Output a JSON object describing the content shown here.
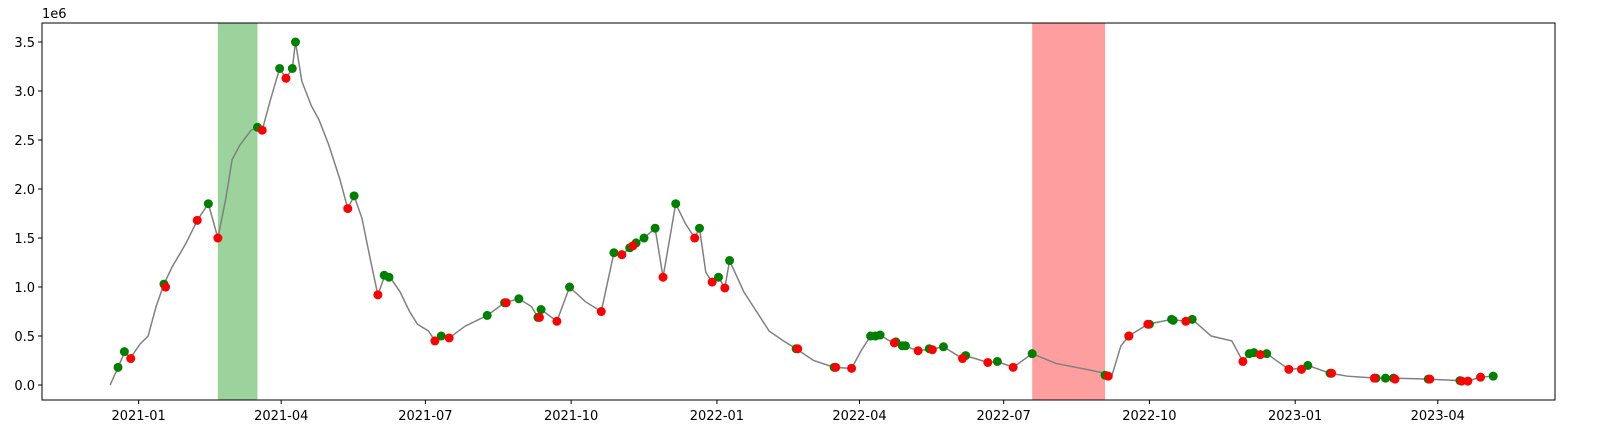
{
  "chart_data": {
    "type": "line",
    "yoffset": "1e6",
    "xlim": [
      "2020-11-01",
      "2023-06-14"
    ],
    "ylim": [
      -0.153,
      3.694
    ],
    "xticks": [
      {
        "value": "2021-01-01",
        "label": "2021-01"
      },
      {
        "value": "2021-04-01",
        "label": "2021-04"
      },
      {
        "value": "2021-07-01",
        "label": "2021-07"
      },
      {
        "value": "2021-10-01",
        "label": "2021-10"
      },
      {
        "value": "2022-01-01",
        "label": "2022-01"
      },
      {
        "value": "2022-04-01",
        "label": "2022-04"
      },
      {
        "value": "2022-07-01",
        "label": "2022-07"
      },
      {
        "value": "2022-10-01",
        "label": "2022-10"
      },
      {
        "value": "2023-01-01",
        "label": "2023-01"
      },
      {
        "value": "2023-04-01",
        "label": "2023-04"
      }
    ],
    "yticks": [
      {
        "value": 0,
        "label": "0.0"
      },
      {
        "value": 0.5,
        "label": "0.5"
      },
      {
        "value": 1,
        "label": "1.0"
      },
      {
        "value": 1.5,
        "label": "1.5"
      },
      {
        "value": 2,
        "label": "2.0"
      },
      {
        "value": 2.5,
        "label": "2.5"
      },
      {
        "value": 3,
        "label": "3.0"
      },
      {
        "value": 3.5,
        "label": "3.5"
      }
    ],
    "spans": [
      {
        "x": [
          "2021-02-20",
          "2021-03-17"
        ],
        "color": "#2ca02c"
      },
      {
        "x": [
          "2022-07-19",
          "2022-09-03"
        ],
        "color": "#ff3030"
      }
    ],
    "series": [
      {
        "type": "line",
        "color": "#808080",
        "x": [
          "2020-12-14",
          "2020-12-19",
          "2020-12-23",
          "2020-12-27",
          "2021-01-02",
          "2021-01-07",
          "2021-01-12",
          "2021-01-17",
          "2021-01-22",
          "2021-01-31",
          "2021-02-07",
          "2021-02-14",
          "2021-02-20",
          "2021-02-25",
          "2021-03-01",
          "2021-03-06",
          "2021-03-13",
          "2021-03-17",
          "2021-03-20",
          "2021-03-25",
          "2021-03-31",
          "2021-04-04",
          "2021-04-08",
          "2021-04-10",
          "2021-04-14",
          "2021-04-20",
          "2021-04-25",
          "2021-05-01",
          "2021-05-08",
          "2021-05-13",
          "2021-05-17",
          "2021-05-22",
          "2021-05-27",
          "2021-06-01",
          "2021-06-05",
          "2021-06-10",
          "2021-06-15",
          "2021-06-21",
          "2021-06-26",
          "2021-07-03",
          "2021-07-07",
          "2021-07-11",
          "2021-07-16",
          "2021-07-26",
          "2021-08-09",
          "2021-08-20",
          "2021-08-29",
          "2021-09-06",
          "2021-09-10",
          "2021-09-12",
          "2021-09-22",
          "2021-09-30",
          "2021-10-10",
          "2021-10-20",
          "2021-10-28",
          "2021-11-02",
          "2021-11-07",
          "2021-11-11",
          "2021-11-16",
          "2021-11-23",
          "2021-11-28",
          "2021-12-06",
          "2021-12-12",
          "2021-12-18",
          "2021-12-21",
          "2021-12-25",
          "2021-12-29",
          "2022-01-02",
          "2022-01-06",
          "2022-01-09",
          "2022-01-18",
          "2022-01-24",
          "2022-02-03",
          "2022-02-12",
          "2022-02-20",
          "2022-03-03",
          "2022-03-16",
          "2022-03-27",
          "2022-04-02",
          "2022-04-08",
          "2022-04-14",
          "2022-04-22",
          "2022-04-29",
          "2022-05-08",
          "2022-05-18",
          "2022-05-24",
          "2022-06-05",
          "2022-06-07",
          "2022-06-21",
          "2022-06-27",
          "2022-07-07",
          "2022-07-19",
          "2022-08-03",
          "2022-08-19",
          "2022-09-03",
          "2022-09-07",
          "2022-09-13",
          "2022-09-18",
          "2022-09-30",
          "2022-10-15",
          "2022-10-24",
          "2022-10-28",
          "2022-11-09",
          "2022-11-22",
          "2022-11-29",
          "2022-12-03",
          "2022-12-08",
          "2022-12-14",
          "2022-12-28",
          "2023-01-04",
          "2023-01-09",
          "2023-01-23",
          "2023-02-03",
          "2023-02-21",
          "2023-03-05",
          "2023-03-26",
          "2023-04-15",
          "2023-04-20",
          "2023-04-28",
          "2023-05-06"
        ],
        "values": [
          0,
          0.18,
          0.33,
          0.28,
          0.42,
          0.5,
          0.8,
          1.03,
          1.2,
          1.45,
          1.68,
          1.85,
          1.5,
          1.9,
          2.3,
          2.45,
          2.6,
          2.63,
          2.6,
          2.9,
          3.23,
          3.13,
          3.23,
          3.5,
          3.1,
          2.85,
          2.7,
          2.45,
          2.1,
          1.8,
          1.93,
          1.7,
          1.3,
          0.92,
          1.1,
          1.07,
          0.95,
          0.75,
          0.62,
          0.55,
          0.45,
          0.5,
          0.48,
          0.6,
          0.71,
          0.84,
          0.88,
          0.8,
          0.69,
          0.77,
          0.65,
          1.0,
          0.85,
          0.75,
          1.35,
          1.33,
          1.4,
          1.45,
          1.5,
          1.6,
          1.1,
          1.85,
          1.65,
          1.5,
          1.6,
          1.15,
          1.05,
          1.1,
          0.99,
          1.27,
          0.95,
          0.8,
          0.55,
          0.45,
          0.37,
          0.25,
          0.18,
          0.17,
          0.35,
          0.5,
          0.51,
          0.43,
          0.4,
          0.35,
          0.37,
          0.39,
          0.27,
          0.3,
          0.23,
          0.24,
          0.18,
          0.32,
          0.22,
          0.17,
          0.12,
          0.08,
          0.4,
          0.5,
          0.62,
          0.67,
          0.65,
          0.67,
          0.5,
          0.45,
          0.24,
          0.32,
          0.33,
          0.32,
          0.16,
          0.17,
          0.2,
          0.12,
          0.09,
          0.07,
          0.07,
          0.06,
          0.045,
          0.04,
          0.08,
          0.09
        ]
      },
      {
        "type": "scatter",
        "color": "#008000",
        "x": [
          "2020-12-19",
          "2020-12-23",
          "2021-01-17",
          "2021-02-14",
          "2021-03-17",
          "2021-03-31",
          "2021-04-08",
          "2021-04-10",
          "2021-05-17",
          "2021-06-05",
          "2021-06-08",
          "2021-07-11",
          "2021-08-09",
          "2021-08-20",
          "2021-08-29",
          "2021-09-10",
          "2021-09-12",
          "2021-09-30",
          "2021-10-28",
          "2021-11-07",
          "2021-11-11",
          "2021-11-16",
          "2021-11-23",
          "2021-12-06",
          "2021-12-21",
          "2022-01-02",
          "2022-01-09",
          "2022-02-20",
          "2022-03-16",
          "2022-04-08",
          "2022-04-11",
          "2022-04-14",
          "2022-04-24",
          "2022-04-28",
          "2022-04-30",
          "2022-05-15",
          "2022-05-24",
          "2022-06-07",
          "2022-06-27",
          "2022-07-19",
          "2022-09-03",
          "2022-09-18",
          "2022-10-01",
          "2022-10-15",
          "2022-10-16",
          "2022-10-28",
          "2022-12-03",
          "2022-12-06",
          "2022-12-14",
          "2023-01-09",
          "2023-01-23",
          "2023-02-21",
          "2023-02-27",
          "2023-03-04",
          "2023-03-26",
          "2023-04-15",
          "2023-05-06"
        ],
        "values": [
          0.18,
          0.34,
          1.03,
          1.85,
          2.63,
          3.23,
          3.23,
          3.5,
          1.93,
          1.12,
          1.1,
          0.5,
          0.71,
          0.84,
          0.88,
          0.69,
          0.77,
          1.0,
          1.35,
          1.4,
          1.45,
          1.5,
          1.6,
          1.85,
          1.6,
          1.1,
          1.27,
          0.37,
          0.18,
          0.5,
          0.5,
          0.51,
          0.44,
          0.4,
          0.4,
          0.37,
          0.39,
          0.3,
          0.24,
          0.32,
          0.1,
          0.5,
          0.62,
          0.67,
          0.66,
          0.67,
          0.32,
          0.33,
          0.32,
          0.2,
          0.12,
          0.07,
          0.07,
          0.07,
          0.06,
          0.045,
          0.09
        ]
      },
      {
        "type": "scatter",
        "color": "#ff0000",
        "x": [
          "2020-12-27",
          "2021-01-18",
          "2021-02-07",
          "2021-02-20",
          "2021-03-20",
          "2021-04-04",
          "2021-05-13",
          "2021-06-01",
          "2021-07-07",
          "2021-07-16",
          "2021-08-21",
          "2021-09-11",
          "2021-09-22",
          "2021-10-20",
          "2021-11-02",
          "2021-11-09",
          "2021-11-28",
          "2021-12-18",
          "2021-12-29",
          "2022-01-06",
          "2022-02-21",
          "2022-03-17",
          "2022-03-27",
          "2022-04-23",
          "2022-05-08",
          "2022-05-17",
          "2022-06-05",
          "2022-06-21",
          "2022-07-07",
          "2022-09-05",
          "2022-09-18",
          "2022-09-30",
          "2022-10-24",
          "2022-11-29",
          "2022-12-10",
          "2022-12-28",
          "2023-01-05",
          "2023-01-24",
          "2023-02-20",
          "2023-03-05",
          "2023-03-27",
          "2023-04-16",
          "2023-04-20",
          "2023-04-28"
        ],
        "values": [
          0.27,
          1.0,
          1.68,
          1.5,
          2.6,
          3.13,
          1.8,
          0.92,
          0.45,
          0.48,
          0.84,
          0.69,
          0.65,
          0.75,
          1.33,
          1.42,
          1.1,
          1.5,
          1.05,
          0.99,
          0.37,
          0.18,
          0.17,
          0.43,
          0.35,
          0.36,
          0.27,
          0.23,
          0.18,
          0.09,
          0.5,
          0.62,
          0.65,
          0.24,
          0.31,
          0.16,
          0.16,
          0.12,
          0.07,
          0.06,
          0.06,
          0.04,
          0.04,
          0.08
        ]
      }
    ]
  }
}
